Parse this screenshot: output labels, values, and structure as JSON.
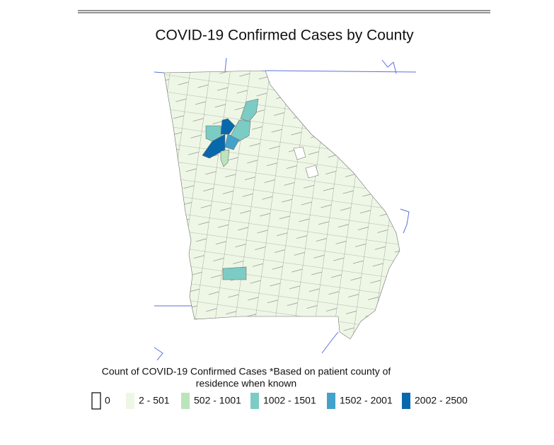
{
  "title": "COVID-19 Confirmed Cases by County",
  "legend": {
    "title_lines": [
      "Count of COVID-19 Confirmed Cases *Based on patient county of",
      "residence when known"
    ],
    "items": [
      {
        "label": "0",
        "color": "#ffffff"
      },
      {
        "label": "2 - 501",
        "color": "#eef7e6"
      },
      {
        "label": "502 - 1001",
        "color": "#bae4bc"
      },
      {
        "label": "1002 - 1501",
        "color": "#7bccc4"
      },
      {
        "label": "1502 - 2001",
        "color": "#43a2ca"
      },
      {
        "label": "2002 - 2500",
        "color": "#0868ac"
      }
    ]
  }
}
